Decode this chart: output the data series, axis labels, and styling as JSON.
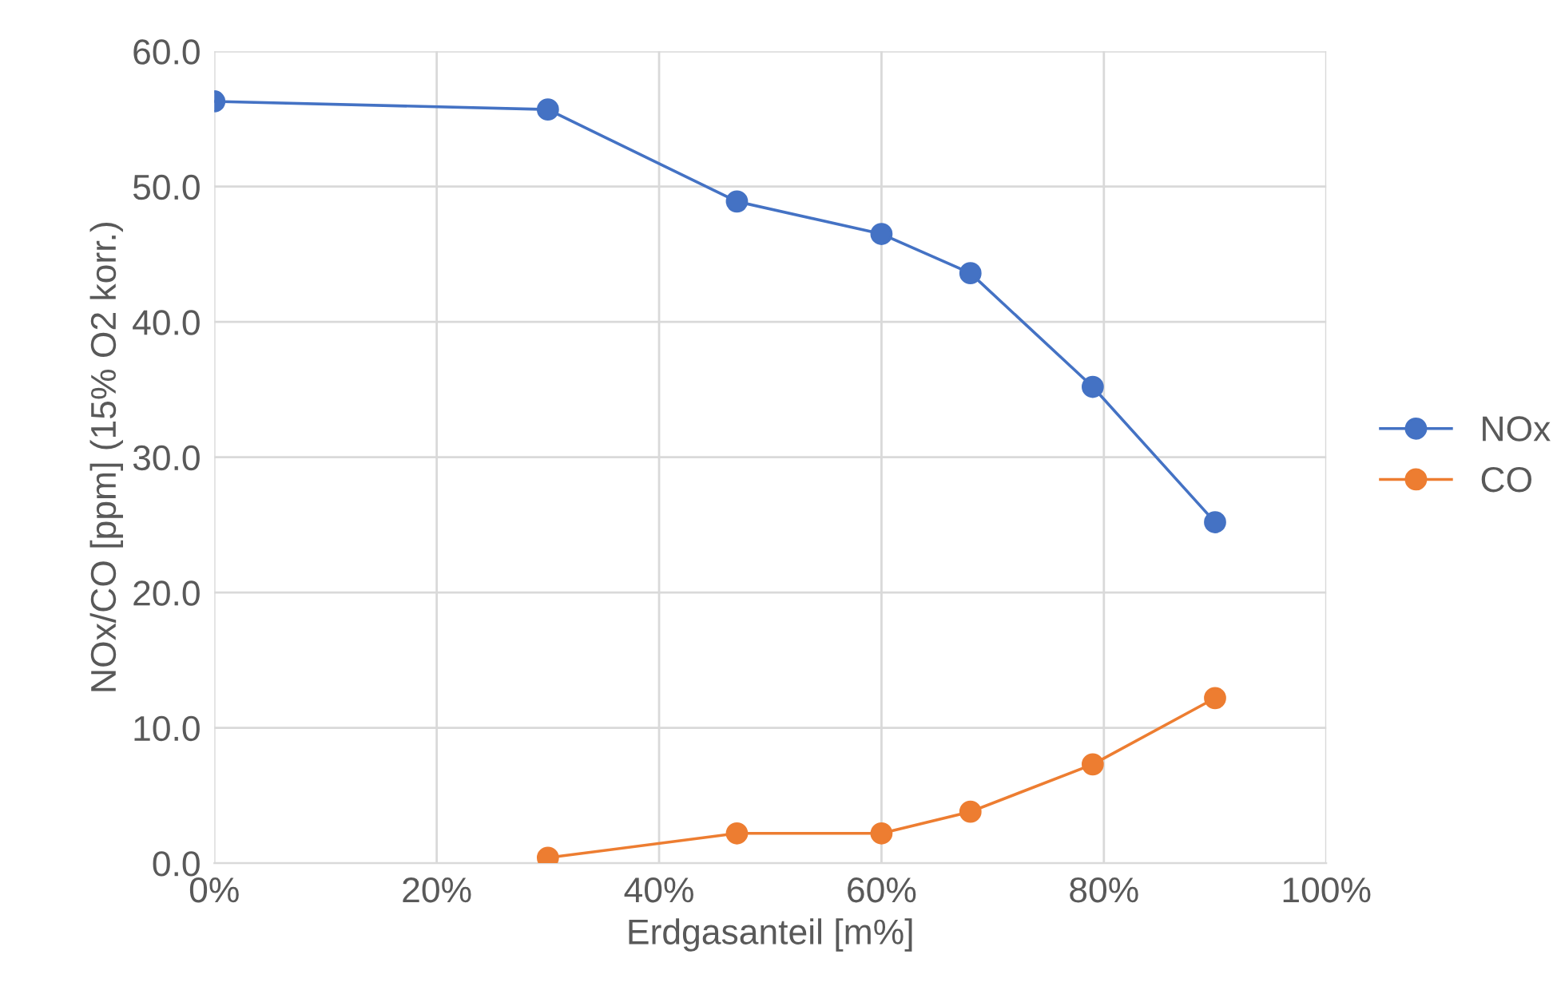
{
  "chart_data": {
    "type": "line",
    "xlabel": "Erdgasanteil [m%]",
    "ylabel": "NOx/CO [ppm] (15% O2 korr.)",
    "series": [
      {
        "name": "NOx",
        "color": "#4472c4",
        "x": [
          0,
          30,
          47,
          60,
          68,
          79,
          90
        ],
        "values": [
          56.3,
          55.7,
          48.9,
          46.5,
          43.6,
          35.2,
          25.2
        ]
      },
      {
        "name": "CO",
        "color": "#ed7d31",
        "x": [
          30,
          47,
          60,
          68,
          79,
          90
        ],
        "values": [
          0.4,
          2.2,
          2.2,
          3.8,
          7.3,
          12.2
        ]
      }
    ],
    "xlim": [
      0,
      100
    ],
    "xticks": [
      {
        "value": 0,
        "label": "0%"
      },
      {
        "value": 20,
        "label": "20%"
      },
      {
        "value": 40,
        "label": "40%"
      },
      {
        "value": 60,
        "label": "60%"
      },
      {
        "value": 80,
        "label": "80%"
      },
      {
        "value": 100,
        "label": "100%"
      }
    ],
    "ylim": [
      0,
      60
    ],
    "yticks": [
      {
        "value": 0,
        "label": "0.0"
      },
      {
        "value": 10,
        "label": "10.0"
      },
      {
        "value": 20,
        "label": "20.0"
      },
      {
        "value": 30,
        "label": "30.0"
      },
      {
        "value": 40,
        "label": "40.0"
      },
      {
        "value": 50,
        "label": "50.0"
      },
      {
        "value": 60,
        "label": "60.0"
      }
    ],
    "grid": true,
    "legend": "right",
    "marker": "circle",
    "line_style": "solid"
  }
}
